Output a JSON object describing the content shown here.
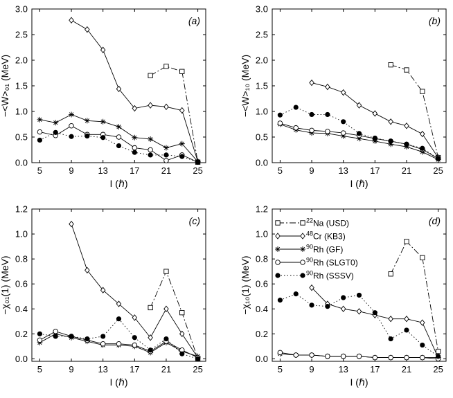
{
  "chart_data": [
    {
      "panel": "a",
      "type": "line",
      "label": "(a)",
      "ylabel": "−<W>₀₁ (MeV)",
      "xlabel": "I (ℏ)",
      "xlim": [
        4,
        26
      ],
      "ylim": [
        0,
        3.0
      ],
      "xticks": [
        5,
        9,
        13,
        17,
        21,
        25
      ],
      "yticks": [
        "0.0",
        "0.5",
        "1.0",
        "1.5",
        "2.0",
        "2.5",
        "3.0"
      ],
      "series": [
        {
          "key": "na",
          "x": [
            19,
            21,
            23,
            25
          ],
          "y": [
            1.7,
            1.88,
            1.78,
            0.01
          ]
        },
        {
          "key": "cr",
          "x": [
            9,
            11,
            13,
            15,
            17,
            19,
            21,
            23,
            25
          ],
          "y": [
            2.78,
            2.6,
            2.2,
            1.44,
            1.06,
            1.12,
            1.09,
            1.02,
            0.02
          ]
        },
        {
          "key": "gf",
          "x": [
            5,
            7,
            9,
            11,
            13,
            15,
            17,
            19,
            21,
            23,
            25
          ],
          "y": [
            0.84,
            0.78,
            0.94,
            0.82,
            0.8,
            0.7,
            0.49,
            0.46,
            0.29,
            0.37,
            0.02
          ]
        },
        {
          "key": "slgt0",
          "x": [
            5,
            7,
            9,
            11,
            13,
            15,
            17,
            19,
            21,
            23,
            25
          ],
          "y": [
            0.6,
            0.53,
            0.72,
            0.55,
            0.55,
            0.5,
            0.29,
            0.25,
            0.04,
            0.15,
            0.01
          ]
        },
        {
          "key": "sssv",
          "x": [
            5,
            7,
            9,
            11,
            13,
            15,
            17,
            19,
            21,
            23,
            25
          ],
          "y": [
            0.44,
            0.59,
            0.51,
            0.52,
            0.49,
            0.33,
            0.2,
            0.15,
            0.15,
            0.12,
            0.01
          ]
        }
      ]
    },
    {
      "panel": "b",
      "type": "line",
      "label": "(b)",
      "ylabel": "−<W>₁₀ (MeV)",
      "xlabel": "I (ℏ)",
      "xlim": [
        4,
        26
      ],
      "ylim": [
        0,
        3.0
      ],
      "xticks": [
        5,
        9,
        13,
        17,
        21,
        25
      ],
      "yticks": [
        "0.0",
        "0.5",
        "1.0",
        "1.5",
        "2.0",
        "2.5",
        "3.0"
      ],
      "series": [
        {
          "key": "na",
          "x": [
            19,
            21,
            23,
            25
          ],
          "y": [
            1.91,
            1.81,
            1.39,
            0.1
          ]
        },
        {
          "key": "cr",
          "x": [
            9,
            11,
            13,
            15,
            17,
            19,
            21,
            23,
            25
          ],
          "y": [
            1.56,
            1.48,
            1.37,
            1.12,
            0.96,
            0.8,
            0.72,
            0.56,
            0.1
          ]
        },
        {
          "key": "gf",
          "x": [
            5,
            7,
            9,
            11,
            13,
            15,
            17,
            19,
            21,
            23,
            25
          ],
          "y": [
            0.75,
            0.64,
            0.58,
            0.57,
            0.52,
            0.47,
            0.42,
            0.36,
            0.31,
            0.21,
            0.06
          ]
        },
        {
          "key": "slgt0",
          "x": [
            5,
            7,
            9,
            11,
            13,
            15,
            17,
            19,
            21,
            23,
            25
          ],
          "y": [
            0.77,
            0.68,
            0.63,
            0.61,
            0.58,
            0.53,
            0.47,
            0.42,
            0.36,
            0.26,
            0.08
          ]
        },
        {
          "key": "sssv",
          "x": [
            5,
            7,
            9,
            11,
            13,
            15,
            17,
            19,
            21,
            23,
            25
          ],
          "y": [
            0.93,
            1.08,
            0.94,
            0.94,
            0.8,
            0.57,
            0.48,
            0.42,
            0.36,
            0.28,
            0.08
          ]
        }
      ]
    },
    {
      "panel": "c",
      "type": "line",
      "label": "(c)",
      "ylabel": "−χ₀₁(1) (MeV)",
      "xlabel": "I (ℏ)",
      "xlim": [
        4,
        26
      ],
      "ylim": [
        -0.02,
        1.2
      ],
      "xticks": [
        5,
        9,
        13,
        17,
        21,
        25
      ],
      "yticks": [
        "0.0",
        "0.2",
        "0.4",
        "0.6",
        "0.8",
        "1.0",
        "1.2"
      ],
      "series": [
        {
          "key": "na",
          "x": [
            19,
            21,
            23,
            25
          ],
          "y": [
            0.41,
            0.7,
            0.37,
            0.0
          ]
        },
        {
          "key": "cr",
          "x": [
            9,
            11,
            13,
            15,
            17,
            19,
            21,
            23,
            25
          ],
          "y": [
            1.08,
            0.71,
            0.55,
            0.44,
            0.33,
            0.17,
            0.4,
            0.2,
            0.01
          ]
        },
        {
          "key": "gf",
          "x": [
            5,
            7,
            9,
            11,
            13,
            15,
            17,
            19,
            21,
            23,
            25
          ],
          "y": [
            0.13,
            0.2,
            0.17,
            0.14,
            0.11,
            0.11,
            0.1,
            0.05,
            0.13,
            0.06,
            0.02
          ]
        },
        {
          "key": "slgt0",
          "x": [
            5,
            7,
            9,
            11,
            13,
            15,
            17,
            19,
            21,
            23,
            25
          ],
          "y": [
            0.15,
            0.22,
            0.18,
            0.15,
            0.12,
            0.12,
            0.11,
            0.06,
            0.14,
            0.07,
            0.01
          ]
        },
        {
          "key": "sssv",
          "x": [
            5,
            7,
            9,
            11,
            13,
            15,
            17,
            19,
            21,
            23,
            25
          ],
          "y": [
            0.2,
            0.18,
            0.18,
            0.16,
            0.18,
            0.32,
            0.17,
            0.07,
            0.16,
            0.04,
            0.0
          ]
        }
      ]
    },
    {
      "panel": "d",
      "type": "line",
      "label": "(d)",
      "ylabel": "−χ₁₀(1) (MeV)",
      "xlabel": "I (ℏ)",
      "xlim": [
        4,
        26
      ],
      "ylim": [
        -0.02,
        1.2
      ],
      "xticks": [
        5,
        9,
        13,
        17,
        21,
        25
      ],
      "yticks": [
        "0.0",
        "0.2",
        "0.4",
        "0.6",
        "0.8",
        "1.0",
        "1.2"
      ],
      "series": [
        {
          "key": "na",
          "x": [
            19,
            21,
            23,
            25
          ],
          "y": [
            0.68,
            0.94,
            0.81,
            0.06
          ]
        },
        {
          "key": "cr",
          "x": [
            9,
            11,
            13,
            15,
            17,
            19,
            21,
            23,
            25
          ],
          "y": [
            0.57,
            0.44,
            0.4,
            0.38,
            0.35,
            0.32,
            0.32,
            0.29,
            0.01
          ]
        },
        {
          "key": "gf",
          "x": [
            5,
            7,
            9,
            11,
            13,
            15,
            17,
            19,
            21,
            23,
            25
          ],
          "y": [
            0.04,
            0.03,
            0.03,
            0.02,
            0.02,
            0.02,
            0.01,
            0.01,
            0.01,
            0.01,
            0.01
          ]
        },
        {
          "key": "slgt0",
          "x": [
            5,
            7,
            9,
            11,
            13,
            15,
            17,
            19,
            21,
            23,
            25
          ],
          "y": [
            0.05,
            0.03,
            0.03,
            0.02,
            0.02,
            0.02,
            0.01,
            0.01,
            0.01,
            0.01,
            0.0
          ]
        },
        {
          "key": "sssv",
          "x": [
            5,
            7,
            9,
            11,
            13,
            15,
            17,
            19,
            21,
            23,
            25
          ],
          "y": [
            0.47,
            0.52,
            0.43,
            0.42,
            0.49,
            0.51,
            0.37,
            0.16,
            0.23,
            0.11,
            0.02
          ]
        }
      ]
    }
  ],
  "legend": {
    "panel": "d",
    "placement": "top-left",
    "entries": [
      {
        "key": "na",
        "sup": "22",
        "text": "Na (USD)"
      },
      {
        "key": "cr",
        "sup": "48",
        "text": "Cr (KB3)"
      },
      {
        "key": "gf",
        "sup": "90",
        "text": "Rh (GF)"
      },
      {
        "key": "slgt0",
        "sup": "90",
        "text": "Rh (SLGT0)"
      },
      {
        "key": "sssv",
        "sup": "90",
        "text": "Rh (SSSV)"
      }
    ]
  },
  "styles": {
    "na": {
      "marker": "square",
      "dash": "9,3,2,3",
      "color": "#000000"
    },
    "cr": {
      "marker": "diamond",
      "dash": "",
      "color": "#000000"
    },
    "gf": {
      "marker": "asterisk",
      "dash": "",
      "color": "#000000"
    },
    "slgt0": {
      "marker": "circle-open",
      "dash": "",
      "color": "#000000"
    },
    "sssv": {
      "marker": "circle-filled",
      "dash": "1.5,3",
      "color": "#000000"
    }
  }
}
